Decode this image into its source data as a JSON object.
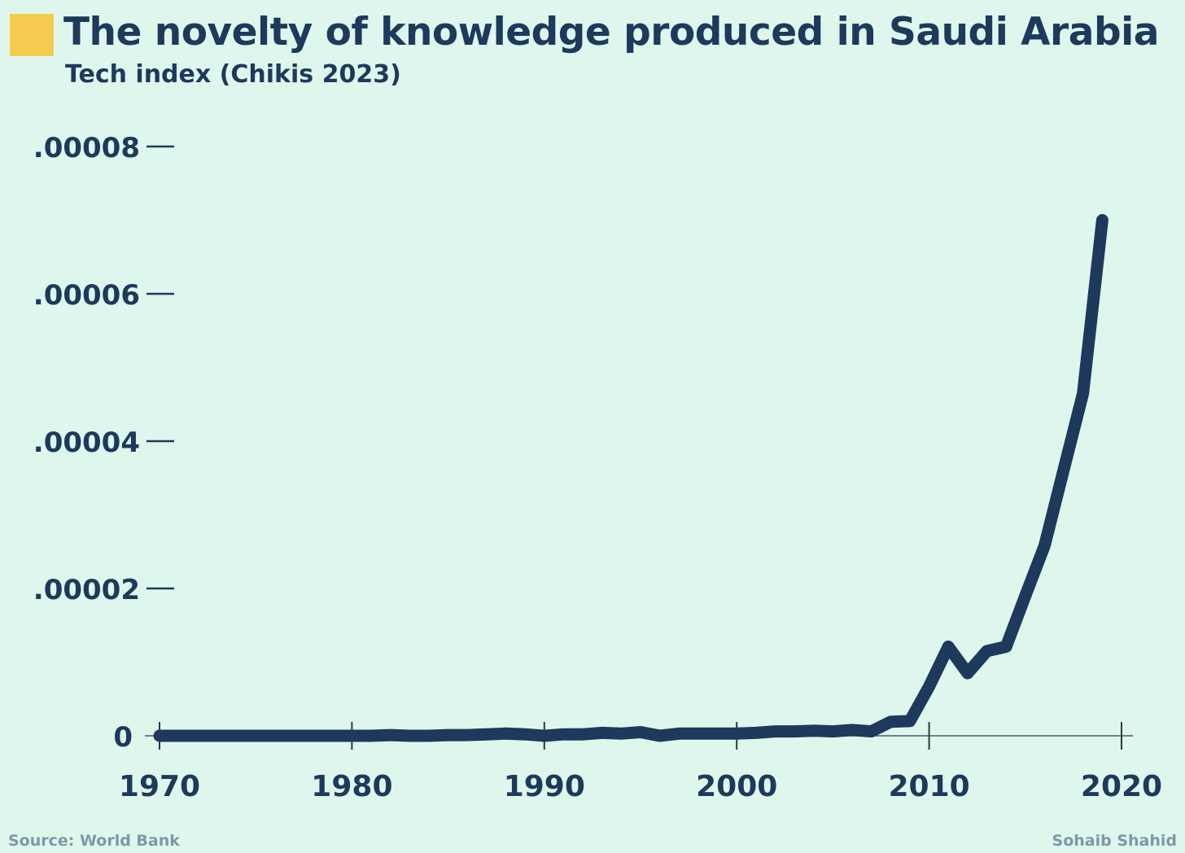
{
  "header": {
    "title": "The novelty of knowledge produced in Saudi Arabia",
    "subtitle": "Tech index (Chikis 2023)",
    "marker_color": "#f5cb4f"
  },
  "footer": {
    "source": "Source: World Bank",
    "author": "Sohaib Shahid"
  },
  "colors": {
    "background": "#dff6ec",
    "line": "#1d3a5c",
    "axis": "#1d3a5c",
    "footer_text": "#7f98a8"
  },
  "chart_data": {
    "type": "line",
    "title": "The novelty of knowledge produced in Saudi Arabia",
    "subtitle": "Tech index (Chikis 2023)",
    "xlabel": "",
    "ylabel": "",
    "xlim": [
      1970,
      2020
    ],
    "ylim": [
      0,
      8e-05
    ],
    "x_ticks": [
      1970,
      1980,
      1990,
      2000,
      2010,
      2020
    ],
    "x_tick_labels": [
      "1970",
      "1980",
      "1990",
      "2000",
      "2010",
      "2020"
    ],
    "y_ticks": [
      0,
      2e-05,
      4e-05,
      6e-05,
      8e-05
    ],
    "y_tick_labels": [
      "0",
      ".00002",
      ".00004",
      ".00006",
      ".00008"
    ],
    "grid": false,
    "legend": "none",
    "series": [
      {
        "x": [
          1970,
          1971,
          1972,
          1973,
          1974,
          1975,
          1976,
          1977,
          1978,
          1979,
          1980,
          1981,
          1982,
          1983,
          1984,
          1985,
          1986,
          1987,
          1988,
          1989,
          1990,
          1991,
          1992,
          1993,
          1994,
          1995,
          1996,
          1997,
          1998,
          1999,
          2000,
          2001,
          2002,
          2003,
          2004,
          2005,
          2006,
          2007,
          2008,
          2009,
          2010,
          2011,
          2012,
          2013,
          2014,
          2015,
          2016,
          2017,
          2018,
          2019
        ],
        "y": [
          0,
          0,
          0,
          0,
          0,
          0,
          0,
          0,
          0,
          0,
          0,
          0,
          1e-07,
          0,
          0,
          1e-07,
          1e-07,
          2e-07,
          3e-07,
          2e-07,
          0,
          2e-07,
          2e-07,
          4e-07,
          3e-07,
          5e-07,
          0,
          3e-07,
          3e-07,
          3e-07,
          3e-07,
          4e-07,
          6e-07,
          6e-07,
          7e-07,
          6e-07,
          8e-07,
          6e-07,
          1.9e-06,
          2e-06,
          6.7e-06,
          1.21e-05,
          8.5e-06,
          1.15e-05,
          1.21e-05,
          1.9e-05,
          2.58e-05,
          3.62e-05,
          4.65e-05,
          7e-05
        ]
      }
    ]
  }
}
